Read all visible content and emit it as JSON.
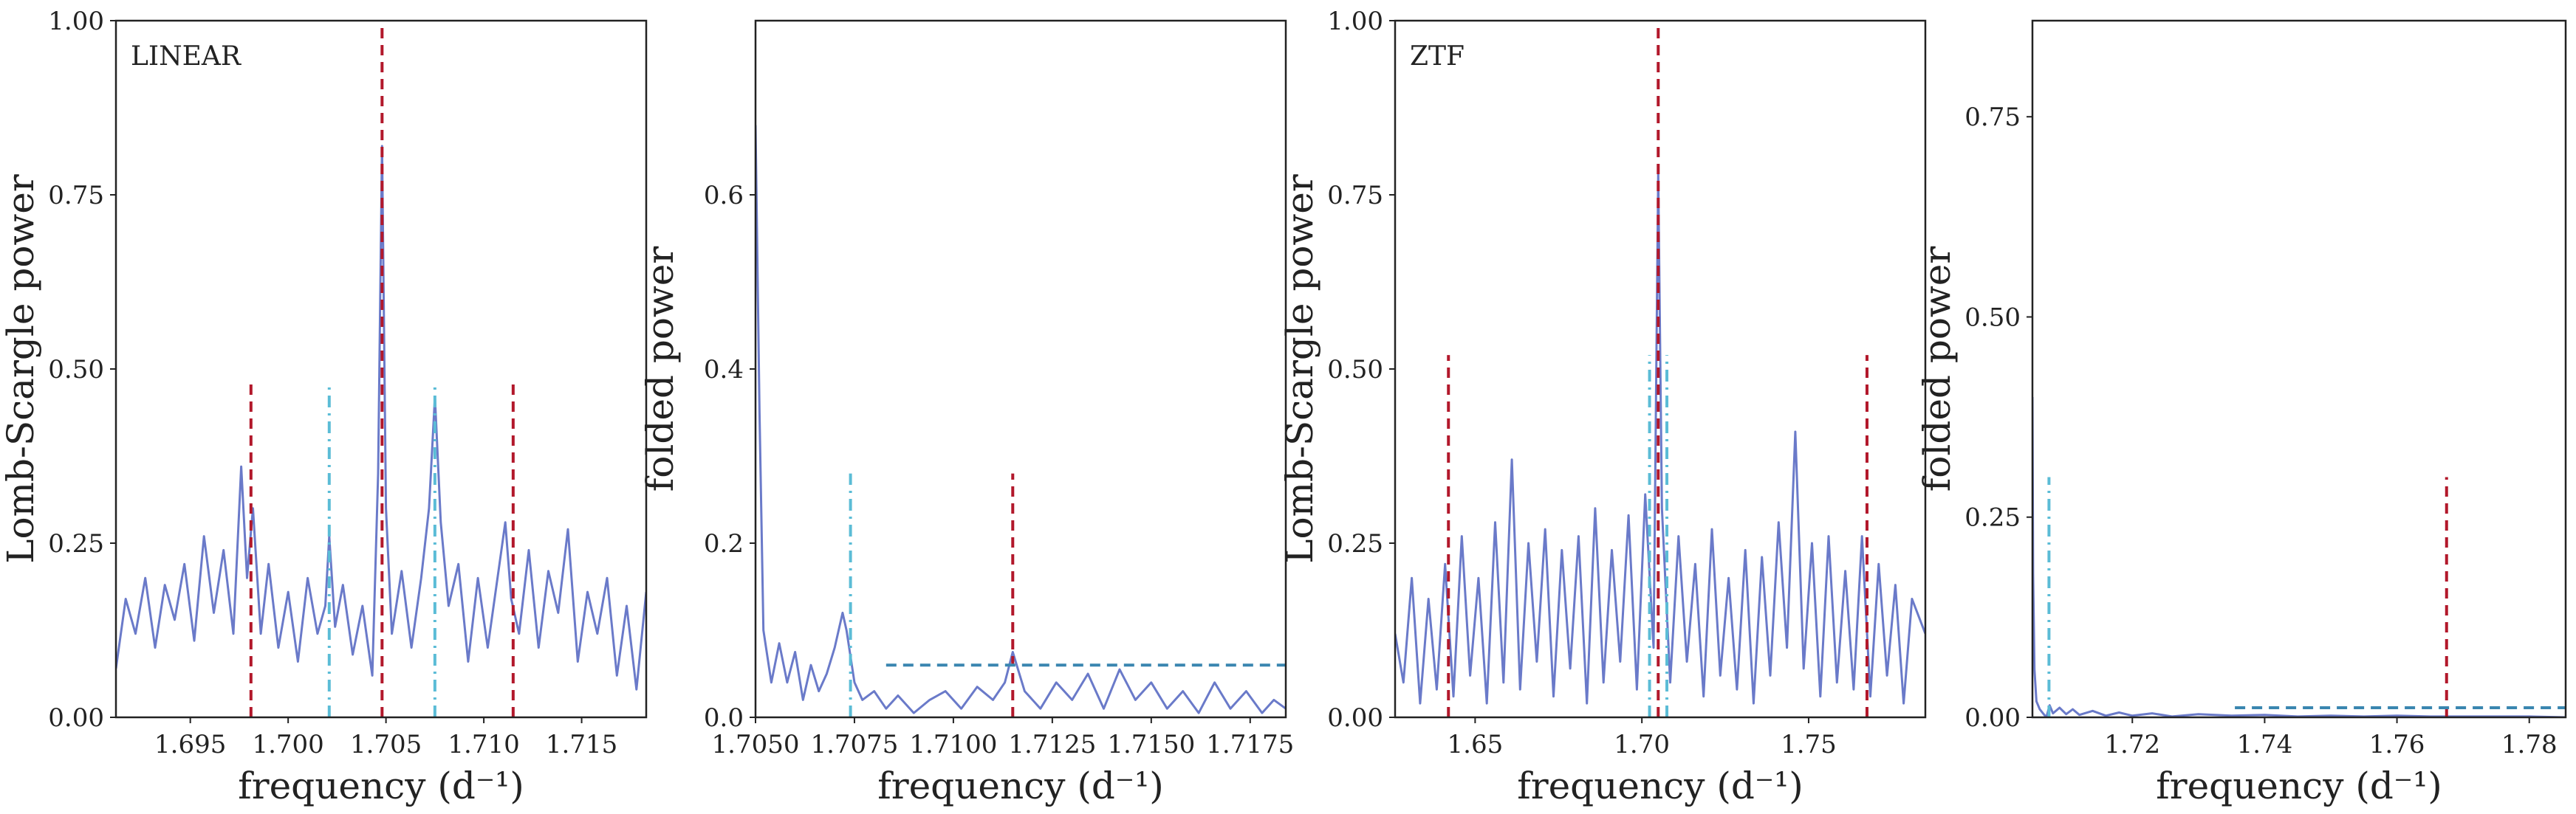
{
  "chart_data": [
    {
      "type": "line",
      "annotation": "LINEAR",
      "xlabel": "frequency (d⁻¹)",
      "ylabel": "Lomb-Scargle power",
      "xlim": [
        1.6912,
        1.7183
      ],
      "ylim": [
        0.0,
        1.0
      ],
      "xticks": [
        1.695,
        1.7,
        1.705,
        1.71,
        1.715
      ],
      "xtick_labels": [
        "1.695",
        "1.700",
        "1.705",
        "1.710",
        "1.715"
      ],
      "yticks": [
        0.0,
        0.25,
        0.5,
        0.75,
        1.0
      ],
      "ytick_labels": [
        "0.00",
        "0.25",
        "0.50",
        "0.75",
        "1.00"
      ],
      "series": [
        {
          "color": "#6a7ac9",
          "style": "solid",
          "x": [
            1.6912,
            1.6917,
            1.6922,
            1.6927,
            1.6932,
            1.6937,
            1.6942,
            1.6947,
            1.6952,
            1.6957,
            1.6962,
            1.6967,
            1.6972,
            1.6976,
            1.6979,
            1.6982,
            1.6986,
            1.699,
            1.6995,
            1.7,
            1.7005,
            1.701,
            1.7015,
            1.7019,
            1.7021,
            1.7024,
            1.7028,
            1.7033,
            1.7038,
            1.7043,
            1.7046,
            1.7048,
            1.705,
            1.7053,
            1.7058,
            1.7063,
            1.7068,
            1.7072,
            1.7075,
            1.7078,
            1.7082,
            1.7087,
            1.7092,
            1.7097,
            1.7102,
            1.7108,
            1.7111,
            1.7114,
            1.7118,
            1.7123,
            1.7128,
            1.7133,
            1.7138,
            1.7143,
            1.7148,
            1.7153,
            1.7158,
            1.7163,
            1.7168,
            1.7173,
            1.7178,
            1.7183
          ],
          "y": [
            0.07,
            0.17,
            0.12,
            0.2,
            0.1,
            0.19,
            0.14,
            0.22,
            0.11,
            0.26,
            0.15,
            0.24,
            0.12,
            0.36,
            0.2,
            0.3,
            0.12,
            0.22,
            0.1,
            0.18,
            0.08,
            0.2,
            0.12,
            0.16,
            0.26,
            0.13,
            0.19,
            0.09,
            0.16,
            0.06,
            0.35,
            0.82,
            0.3,
            0.12,
            0.21,
            0.1,
            0.2,
            0.3,
            0.46,
            0.28,
            0.16,
            0.22,
            0.08,
            0.2,
            0.1,
            0.22,
            0.28,
            0.17,
            0.12,
            0.24,
            0.1,
            0.21,
            0.15,
            0.27,
            0.08,
            0.18,
            0.12,
            0.2,
            0.06,
            0.16,
            0.04,
            0.18
          ]
        }
      ],
      "vlines": [
        {
          "x": 1.7048,
          "y0": 0.0,
          "y1": 1.0,
          "color": "#b2182b",
          "style": "dashed"
        },
        {
          "x": 1.6981,
          "y0": 0.0,
          "y1": 0.48,
          "color": "#b2182b",
          "style": "dashed"
        },
        {
          "x": 1.7115,
          "y0": 0.0,
          "y1": 0.48,
          "color": "#b2182b",
          "style": "dashed"
        },
        {
          "x": 1.7021,
          "y0": 0.0,
          "y1": 0.48,
          "color": "#5bbcd6",
          "style": "dashdot"
        },
        {
          "x": 1.7075,
          "y0": 0.0,
          "y1": 0.48,
          "color": "#5bbcd6",
          "style": "dashdot"
        }
      ],
      "hlines": []
    },
    {
      "type": "line",
      "xlabel": "frequency (d⁻¹)",
      "ylabel": "folded power",
      "xlim": [
        1.705,
        1.7184
      ],
      "ylim": [
        0.0,
        0.8
      ],
      "xticks": [
        1.705,
        1.7075,
        1.71,
        1.7125,
        1.715,
        1.7175
      ],
      "xtick_labels": [
        "1.7050",
        "1.7075",
        "1.7100",
        "1.7125",
        "1.7150",
        "1.7175"
      ],
      "yticks": [
        0.0,
        0.2,
        0.4,
        0.6
      ],
      "ytick_labels": [
        "0.0",
        "0.2",
        "0.4",
        "0.6"
      ],
      "series": [
        {
          "color": "#6a7ac9",
          "style": "solid",
          "x": [
            1.705,
            1.7051,
            1.7052,
            1.7054,
            1.7056,
            1.7058,
            1.706,
            1.7062,
            1.7064,
            1.7066,
            1.7068,
            1.707,
            1.7072,
            1.7073,
            1.7075,
            1.7077,
            1.708,
            1.7083,
            1.7086,
            1.709,
            1.7094,
            1.7098,
            1.7102,
            1.7106,
            1.711,
            1.7113,
            1.7115,
            1.7118,
            1.7122,
            1.7126,
            1.713,
            1.7134,
            1.7138,
            1.7142,
            1.7146,
            1.715,
            1.7154,
            1.7158,
            1.7162,
            1.7166,
            1.717,
            1.7174,
            1.7178,
            1.7181,
            1.7184
          ],
          "y": [
            0.68,
            0.35,
            0.1,
            0.04,
            0.085,
            0.04,
            0.075,
            0.02,
            0.06,
            0.03,
            0.05,
            0.08,
            0.12,
            0.1,
            0.04,
            0.02,
            0.03,
            0.01,
            0.025,
            0.005,
            0.02,
            0.03,
            0.01,
            0.035,
            0.02,
            0.04,
            0.075,
            0.03,
            0.01,
            0.04,
            0.02,
            0.05,
            0.01,
            0.055,
            0.02,
            0.04,
            0.01,
            0.03,
            0.005,
            0.04,
            0.01,
            0.03,
            0.005,
            0.02,
            0.01
          ]
        }
      ],
      "vlines": [
        {
          "x": 1.7074,
          "y0": 0.0,
          "y1": 0.28,
          "color": "#5bbcd6",
          "style": "dashdot"
        },
        {
          "x": 1.7115,
          "y0": 0.0,
          "y1": 0.28,
          "color": "#b2182b",
          "style": "dashed"
        }
      ],
      "hlines": [
        {
          "y": 0.06,
          "x0": 1.7083,
          "x1": 1.7184,
          "color": "#3a86b0",
          "style": "dashed"
        }
      ]
    },
    {
      "type": "line",
      "annotation": "ZTF",
      "xlabel": "frequency (d⁻¹)",
      "ylabel": "Lomb-Scargle power",
      "xlim": [
        1.626,
        1.785
      ],
      "ylim": [
        0.0,
        1.0
      ],
      "xticks": [
        1.65,
        1.7,
        1.75
      ],
      "xtick_labels": [
        "1.65",
        "1.70",
        "1.75"
      ],
      "yticks": [
        0.0,
        0.25,
        0.5,
        0.75,
        1.0
      ],
      "ytick_labels": [
        "0.00",
        "0.25",
        "0.50",
        "0.75",
        "1.00"
      ],
      "series": [
        {
          "color": "#6a7ac9",
          "style": "solid",
          "x": [
            1.626,
            1.6285,
            1.631,
            1.6335,
            1.636,
            1.6385,
            1.641,
            1.6435,
            1.646,
            1.6485,
            1.651,
            1.6535,
            1.656,
            1.6585,
            1.661,
            1.6635,
            1.666,
            1.6685,
            1.671,
            1.6735,
            1.676,
            1.6785,
            1.681,
            1.6835,
            1.686,
            1.6885,
            1.691,
            1.6935,
            1.696,
            1.6985,
            1.701,
            1.7035,
            1.7049,
            1.706,
            1.7085,
            1.711,
            1.7135,
            1.716,
            1.7185,
            1.721,
            1.7235,
            1.726,
            1.7285,
            1.731,
            1.7335,
            1.736,
            1.7385,
            1.741,
            1.7435,
            1.746,
            1.7485,
            1.751,
            1.7535,
            1.756,
            1.7585,
            1.761,
            1.7635,
            1.766,
            1.7685,
            1.771,
            1.7735,
            1.776,
            1.7785,
            1.781,
            1.785
          ],
          "y": [
            0.12,
            0.05,
            0.2,
            0.02,
            0.17,
            0.04,
            0.22,
            0.03,
            0.26,
            0.06,
            0.2,
            0.02,
            0.28,
            0.05,
            0.37,
            0.04,
            0.25,
            0.08,
            0.27,
            0.03,
            0.24,
            0.07,
            0.26,
            0.02,
            0.3,
            0.05,
            0.24,
            0.08,
            0.29,
            0.04,
            0.32,
            0.1,
            0.78,
            0.3,
            0.05,
            0.26,
            0.08,
            0.22,
            0.03,
            0.27,
            0.06,
            0.2,
            0.04,
            0.24,
            0.02,
            0.23,
            0.06,
            0.28,
            0.1,
            0.41,
            0.07,
            0.25,
            0.03,
            0.26,
            0.05,
            0.21,
            0.04,
            0.26,
            0.03,
            0.22,
            0.06,
            0.19,
            0.02,
            0.17,
            0.12
          ]
        }
      ],
      "vlines": [
        {
          "x": 1.7049,
          "y0": 0.0,
          "y1": 1.0,
          "color": "#b2182b",
          "style": "dashed"
        },
        {
          "x": 1.642,
          "y0": 0.0,
          "y1": 0.52,
          "color": "#b2182b",
          "style": "dashed"
        },
        {
          "x": 1.7675,
          "y0": 0.0,
          "y1": 0.52,
          "color": "#b2182b",
          "style": "dashed"
        },
        {
          "x": 1.7023,
          "y0": 0.0,
          "y1": 0.52,
          "color": "#5bbcd6",
          "style": "dashdot"
        },
        {
          "x": 1.7075,
          "y0": 0.0,
          "y1": 0.52,
          "color": "#5bbcd6",
          "style": "dashdot"
        }
      ],
      "hlines": []
    },
    {
      "type": "line",
      "xlabel": "frequency (d⁻¹)",
      "ylabel": "folded power",
      "xlim": [
        1.7049,
        1.7855
      ],
      "ylim": [
        0.0,
        0.87
      ],
      "xticks": [
        1.72,
        1.74,
        1.76,
        1.78
      ],
      "xtick_labels": [
        "1.72",
        "1.74",
        "1.76",
        "1.78"
      ],
      "yticks": [
        0.0,
        0.25,
        0.5,
        0.75
      ],
      "ytick_labels": [
        "0.00",
        "0.25",
        "0.50",
        "0.75"
      ],
      "series": [
        {
          "color": "#6a7ac9",
          "style": "solid",
          "x": [
            1.7049,
            1.705,
            1.7052,
            1.7055,
            1.706,
            1.7065,
            1.707,
            1.7075,
            1.708,
            1.709,
            1.71,
            1.711,
            1.712,
            1.714,
            1.716,
            1.718,
            1.72,
            1.723,
            1.726,
            1.73,
            1.735,
            1.74,
            1.745,
            1.75,
            1.755,
            1.76,
            1.765,
            1.77,
            1.775,
            1.78,
            1.7855
          ],
          "y": [
            0.4,
            0.18,
            0.06,
            0.02,
            0.01,
            0.005,
            0.0,
            0.015,
            0.005,
            0.012,
            0.004,
            0.01,
            0.003,
            0.008,
            0.002,
            0.006,
            0.002,
            0.005,
            0.001,
            0.004,
            0.002,
            0.003,
            0.001,
            0.002,
            0.001,
            0.002,
            0.001,
            0.001,
            0.001,
            0.001,
            0.0
          ]
        }
      ],
      "vlines": [
        {
          "x": 1.7074,
          "y0": 0.0,
          "y1": 0.3,
          "color": "#5bbcd6",
          "style": "dashdot"
        },
        {
          "x": 1.7675,
          "y0": 0.0,
          "y1": 0.3,
          "color": "#b2182b",
          "style": "dashed"
        }
      ],
      "hlines": [
        {
          "y": 0.012,
          "x0": 1.7355,
          "x1": 1.7855,
          "color": "#3a86b0",
          "style": "dashed"
        }
      ]
    }
  ]
}
